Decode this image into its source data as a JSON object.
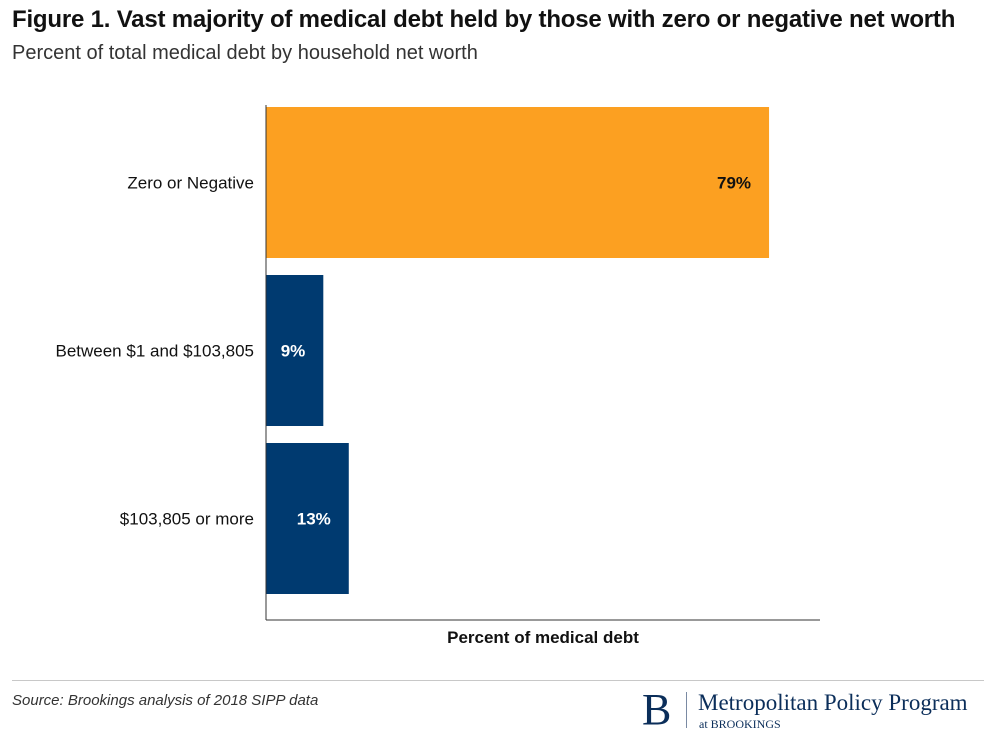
{
  "header": {
    "title": "Figure 1. Vast majority of medical debt held by those with zero or negative net worth",
    "subtitle": "Percent of total medical debt by household net worth"
  },
  "chart_data": {
    "type": "bar",
    "orientation": "horizontal",
    "categories": [
      "Zero or Negative",
      "Between $1 and $103,805",
      "$103,805 or more"
    ],
    "values": [
      79,
      9,
      13
    ],
    "value_labels": [
      "79%",
      "9%",
      "13%"
    ],
    "bar_colors": [
      "#fca021",
      "#003a70",
      "#003a70"
    ],
    "value_label_colors": [
      "#111111",
      "#ffffff",
      "#ffffff"
    ],
    "xlabel": "Percent of medical debt",
    "ylabel": "",
    "xlim": [
      0,
      87
    ],
    "grid": false,
    "legend": "none"
  },
  "footer": {
    "source": "Source: Brookings analysis of 2018 SIPP data"
  },
  "logo": {
    "mark": "B",
    "name": "Metropolitan Policy Program",
    "affiliation": "at BROOKINGS"
  },
  "colors": {
    "orange": "#fca021",
    "navy": "#003a70",
    "logo_navy": "#0b2e5a"
  }
}
